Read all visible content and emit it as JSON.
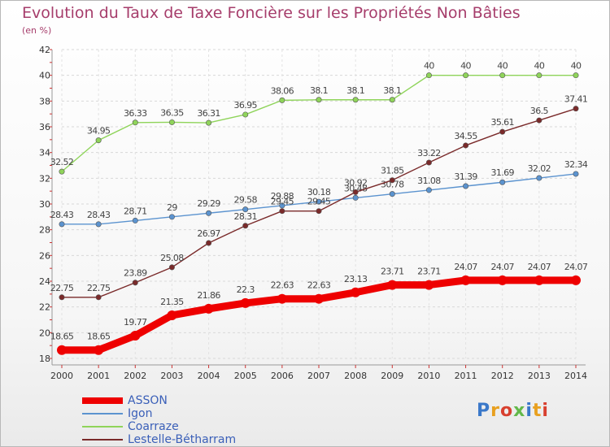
{
  "title": "Evolution du Taux de Taxe Foncière sur les Propriétés Non Bâties",
  "unit": "(en %)",
  "logo": "Proxiti",
  "chart_data": {
    "type": "line",
    "x": [
      "2000",
      "2001",
      "2002",
      "2003",
      "2004",
      "2005",
      "2006",
      "2007",
      "2008",
      "2009",
      "2010",
      "2011",
      "2012",
      "2013",
      "2014"
    ],
    "ylim": [
      18,
      42
    ],
    "yticks": [
      18,
      20,
      22,
      24,
      26,
      28,
      30,
      32,
      34,
      36,
      38,
      40,
      42
    ],
    "grid": true,
    "legend_position": "bottom-left",
    "series": [
      {
        "name": "ASSON",
        "color": "#ee0000",
        "values": [
          18.65,
          18.65,
          19.77,
          21.35,
          21.86,
          22.3,
          22.63,
          22.63,
          23.13,
          23.71,
          23.71,
          24.07,
          24.07,
          24.07,
          24.07
        ],
        "labels": [
          "18.65",
          "18.65",
          "19.77",
          "21.35",
          "21.86",
          "22.3",
          "22.63",
          "22.63",
          "23.13",
          "23.71",
          "23.71",
          "24.07",
          "24.07",
          "24.07",
          "24.07"
        ]
      },
      {
        "name": "Igon",
        "color": "#5b93cf",
        "values": [
          28.43,
          28.43,
          28.71,
          29,
          29.29,
          29.58,
          29.88,
          30.18,
          30.48,
          30.78,
          31.08,
          31.39,
          31.69,
          32.02,
          32.34
        ],
        "labels": [
          "28.43",
          "28.43",
          "28.71",
          "29",
          "29.29",
          "29.58",
          "29.88",
          "30.18",
          "30.48",
          "30.78",
          "31.08",
          "31.39",
          "31.69",
          "32.02",
          "32.34"
        ]
      },
      {
        "name": "Coarraze",
        "color": "#8fd45a",
        "values": [
          32.52,
          34.95,
          36.33,
          36.35,
          36.31,
          36.95,
          38.06,
          38.1,
          38.1,
          38.1,
          40,
          40,
          40,
          40,
          40
        ],
        "labels": [
          "32.52",
          "34.95",
          "36.33",
          "36.35",
          "36.31",
          "36.95",
          "38.06",
          "38.1",
          "38.1",
          "38.1",
          "40",
          "40",
          "40",
          "40",
          "40"
        ]
      },
      {
        "name": "Lestelle-Bétharram",
        "color": "#7a2a2a",
        "values": [
          22.75,
          22.75,
          23.89,
          25.08,
          26.97,
          28.31,
          29.45,
          29.45,
          30.92,
          31.85,
          33.22,
          34.55,
          35.61,
          36.5,
          37.41
        ],
        "labels": [
          "22.75",
          "22.75",
          "23.89",
          "25.08",
          "26.97",
          "28.31",
          "29.45",
          "29.45",
          "30.92",
          "31.85",
          "33.22",
          "34.55",
          "35.61",
          "36.5",
          "37.41"
        ]
      }
    ]
  }
}
